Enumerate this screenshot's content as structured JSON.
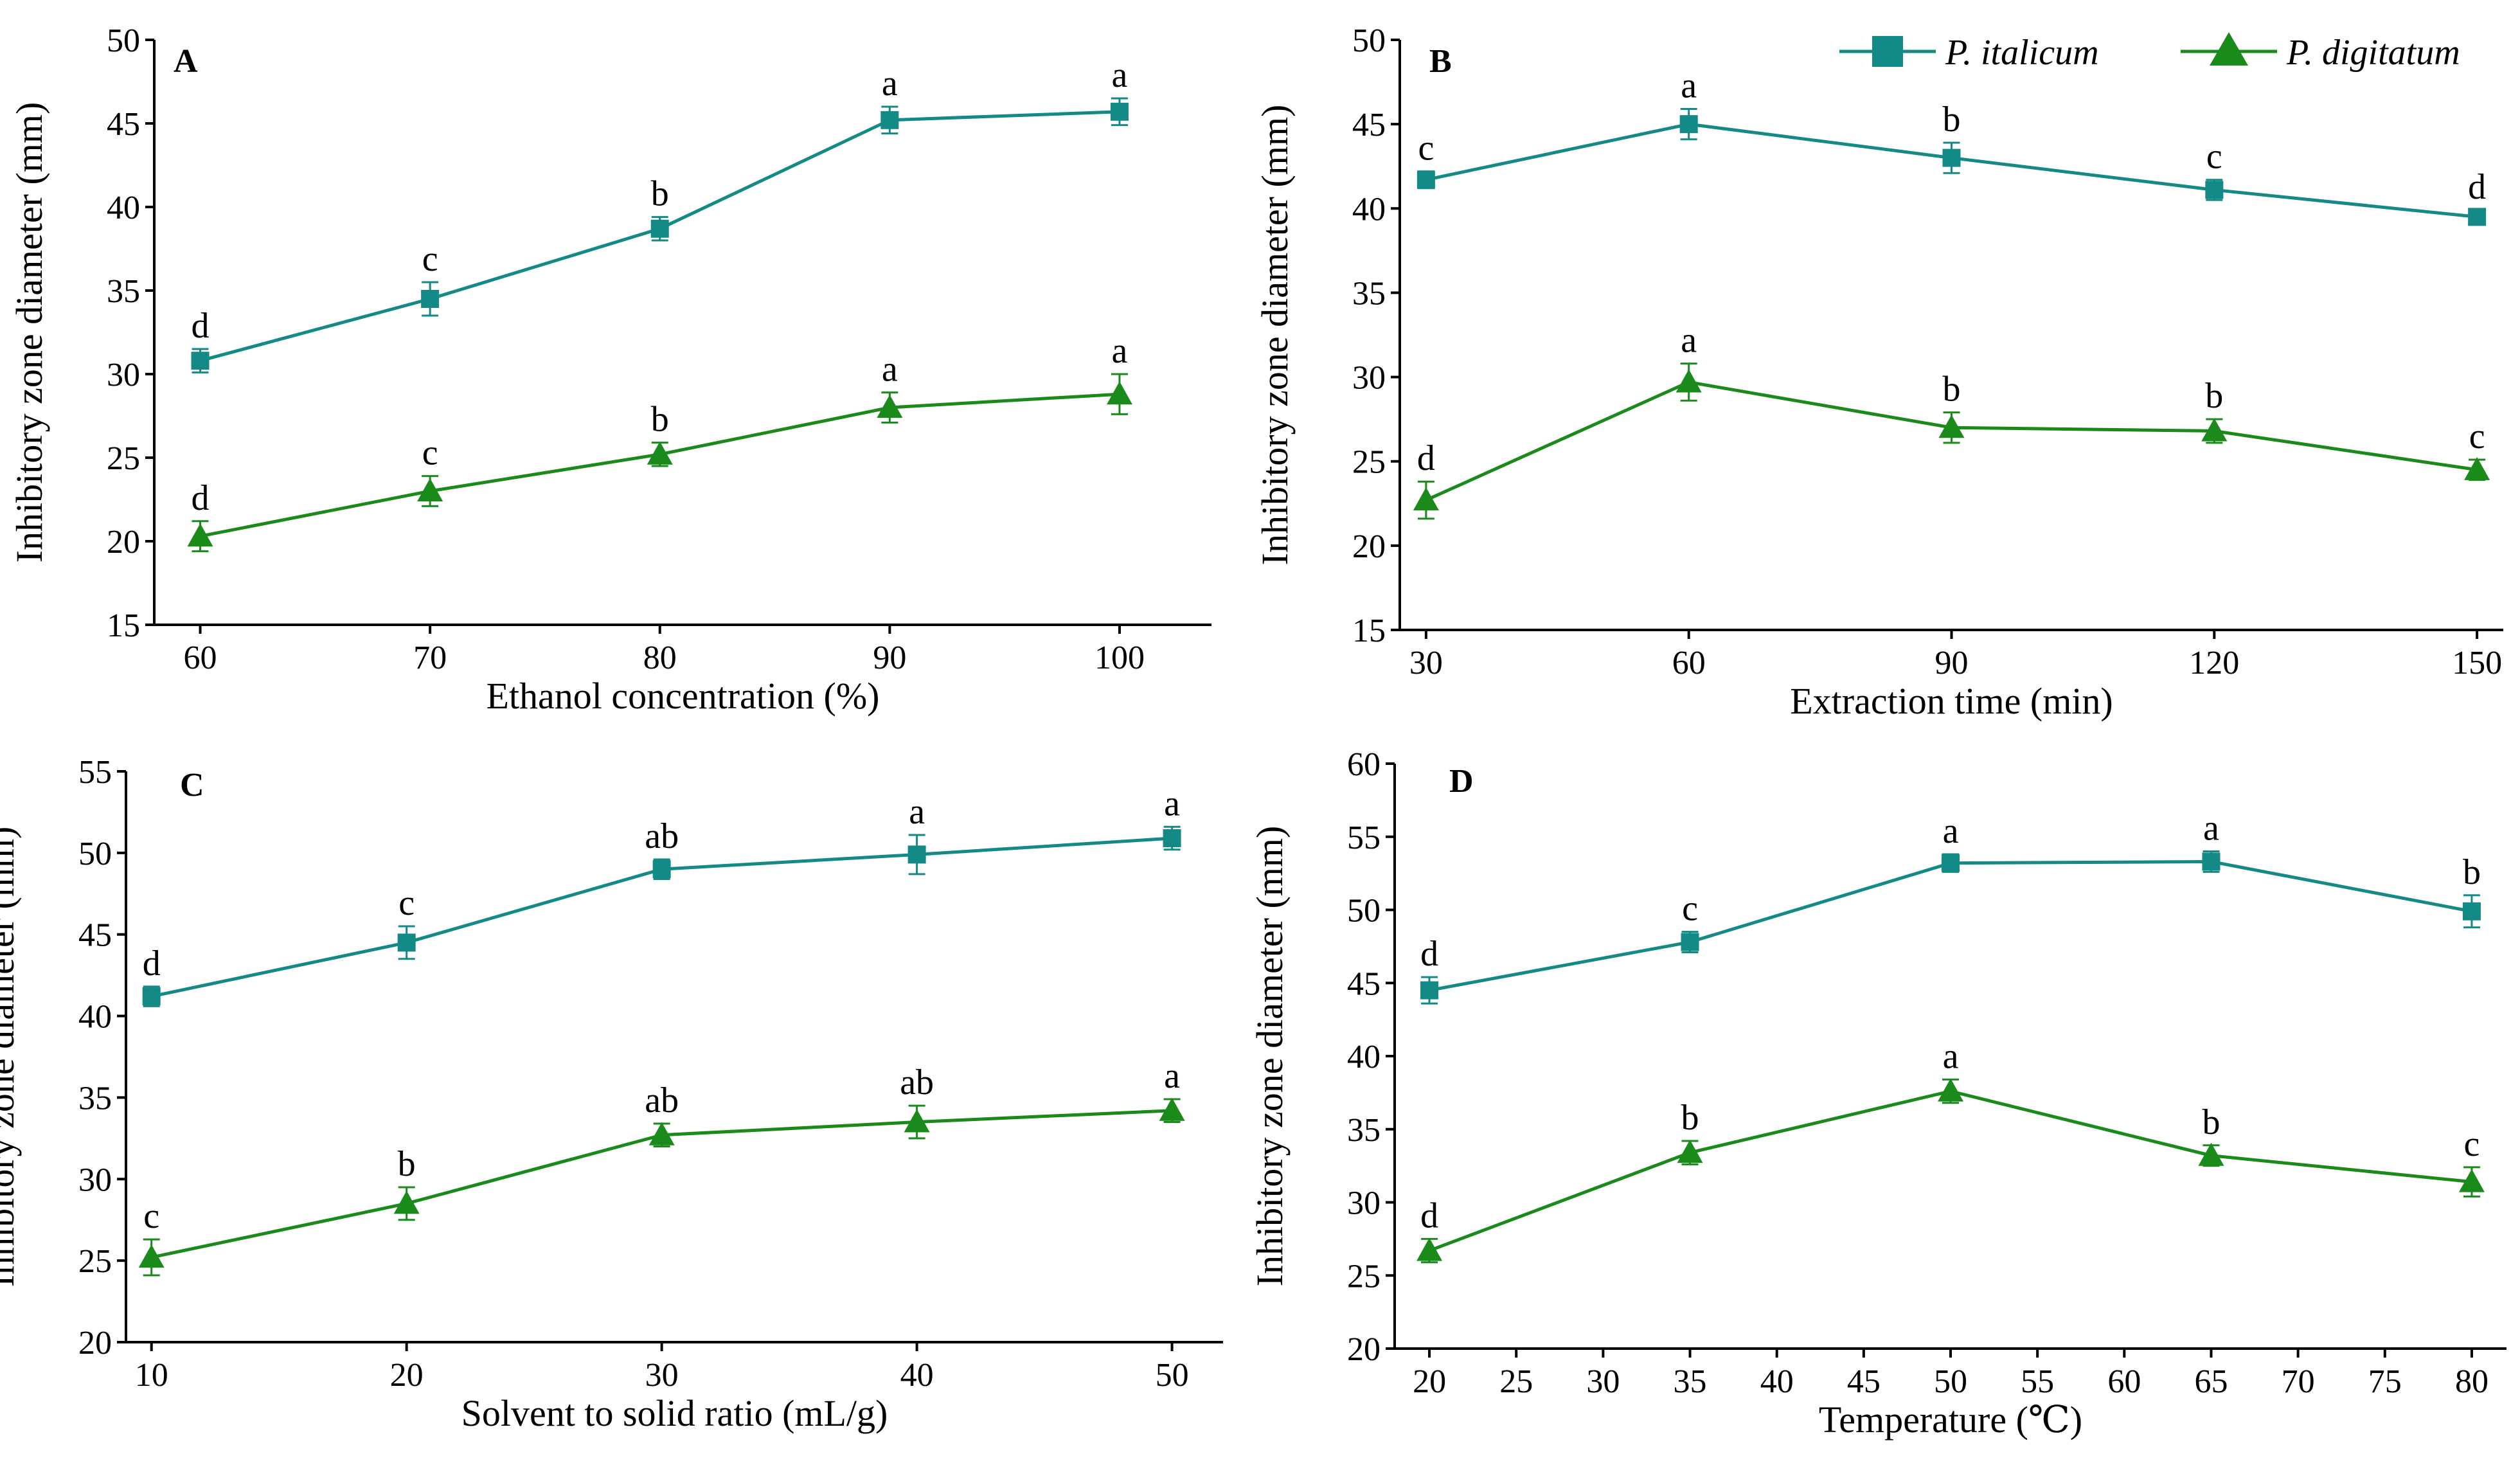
{
  "legend": [
    {
      "name": "P. italicum",
      "color": "#138a86",
      "marker": "square"
    },
    {
      "name": "P. digitatum",
      "color": "#1a8a1a",
      "marker": "triangle"
    }
  ],
  "chart_data": [
    {
      "type": "line",
      "panel": "A",
      "xlabel": "Ethanol concentration (%)",
      "ylabel": "Inhibitory zone diameter (mm)",
      "x": [
        60,
        70,
        80,
        90,
        100
      ],
      "xticks": [
        60,
        70,
        80,
        90,
        100
      ],
      "xlim": [
        58,
        104
      ],
      "yticks": [
        15,
        20,
        25,
        30,
        35,
        40,
        45,
        50
      ],
      "ylim": [
        15,
        50
      ],
      "series": [
        {
          "name": "P. italicum",
          "values": [
            30.8,
            34.5,
            38.7,
            45.2,
            45.7
          ],
          "errors": [
            0.7,
            1.0,
            0.7,
            0.8,
            0.8
          ],
          "labels": [
            "d",
            "c",
            "b",
            "a",
            "a"
          ]
        },
        {
          "name": "P. digitatum",
          "values": [
            20.3,
            23.0,
            25.2,
            28.0,
            28.8
          ],
          "errors": [
            0.9,
            0.9,
            0.7,
            0.9,
            1.2
          ],
          "labels": [
            "d",
            "c",
            "b",
            "a",
            "a"
          ]
        }
      ]
    },
    {
      "type": "line",
      "panel": "B",
      "xlabel": "Extraction time (min)",
      "ylabel": "Inhibitory zone diameter (mm)",
      "x": [
        30,
        60,
        90,
        120,
        150
      ],
      "xticks": [
        30,
        60,
        90,
        120,
        150
      ],
      "xlim": [
        27,
        153
      ],
      "yticks": [
        15,
        20,
        25,
        30,
        35,
        40,
        45,
        50
      ],
      "ylim": [
        15,
        50
      ],
      "series": [
        {
          "name": "P. italicum",
          "values": [
            41.7,
            45.0,
            43.0,
            41.1,
            39.5
          ],
          "errors": [
            0.5,
            0.9,
            0.9,
            0.6,
            0.4
          ],
          "labels": [
            "c",
            "a",
            "b",
            "c",
            "d"
          ]
        },
        {
          "name": "P. digitatum",
          "values": [
            22.7,
            29.7,
            27.0,
            26.8,
            24.5
          ],
          "errors": [
            1.1,
            1.1,
            0.9,
            0.7,
            0.6
          ],
          "labels": [
            "d",
            "a",
            "b",
            "b",
            "c"
          ]
        }
      ]
    },
    {
      "type": "line",
      "panel": "C",
      "xlabel": "Solvent to solid ratio (mL/g)",
      "ylabel": "Inhibitory zone diameter (mm)",
      "x": [
        10,
        20,
        30,
        40,
        50
      ],
      "xticks": [
        10,
        20,
        30,
        40,
        50
      ],
      "xlim": [
        9,
        52
      ],
      "yticks": [
        20,
        25,
        30,
        35,
        40,
        45,
        50,
        55
      ],
      "ylim": [
        20,
        55
      ],
      "series": [
        {
          "name": "P. italicum",
          "values": [
            41.2,
            44.5,
            49.0,
            49.9,
            50.9
          ],
          "errors": [
            0.6,
            1.0,
            0.6,
            1.2,
            0.7
          ],
          "labels": [
            "d",
            "c",
            "ab",
            "a",
            "a"
          ]
        },
        {
          "name": "P. digitatum",
          "values": [
            25.2,
            28.5,
            32.7,
            33.5,
            34.2
          ],
          "errors": [
            1.1,
            1.0,
            0.7,
            1.0,
            0.7
          ],
          "labels": [
            "c",
            "b",
            "ab",
            "ab",
            "a"
          ]
        }
      ]
    },
    {
      "type": "line",
      "panel": "D",
      "xlabel": "Temperature (℃)",
      "ylabel": "Inhibitory zone diameter (mm)",
      "x": [
        20,
        35,
        50,
        65,
        80
      ],
      "xticks": [
        20,
        25,
        30,
        35,
        40,
        45,
        50,
        55,
        60,
        65,
        70,
        75,
        80
      ],
      "xlim": [
        18,
        82
      ],
      "yticks": [
        20,
        25,
        30,
        35,
        40,
        45,
        50,
        55,
        60
      ],
      "ylim": [
        20,
        60
      ],
      "series": [
        {
          "name": "P. italicum",
          "values": [
            44.5,
            47.8,
            53.2,
            53.3,
            49.9
          ],
          "errors": [
            0.9,
            0.7,
            0.6,
            0.7,
            1.1
          ],
          "labels": [
            "d",
            "c",
            "a",
            "a",
            "b"
          ]
        },
        {
          "name": "P. digitatum",
          "values": [
            26.7,
            33.4,
            37.6,
            33.2,
            31.4
          ],
          "errors": [
            0.8,
            0.8,
            0.8,
            0.7,
            1.0
          ],
          "labels": [
            "d",
            "b",
            "a",
            "b",
            "c"
          ]
        }
      ]
    }
  ]
}
